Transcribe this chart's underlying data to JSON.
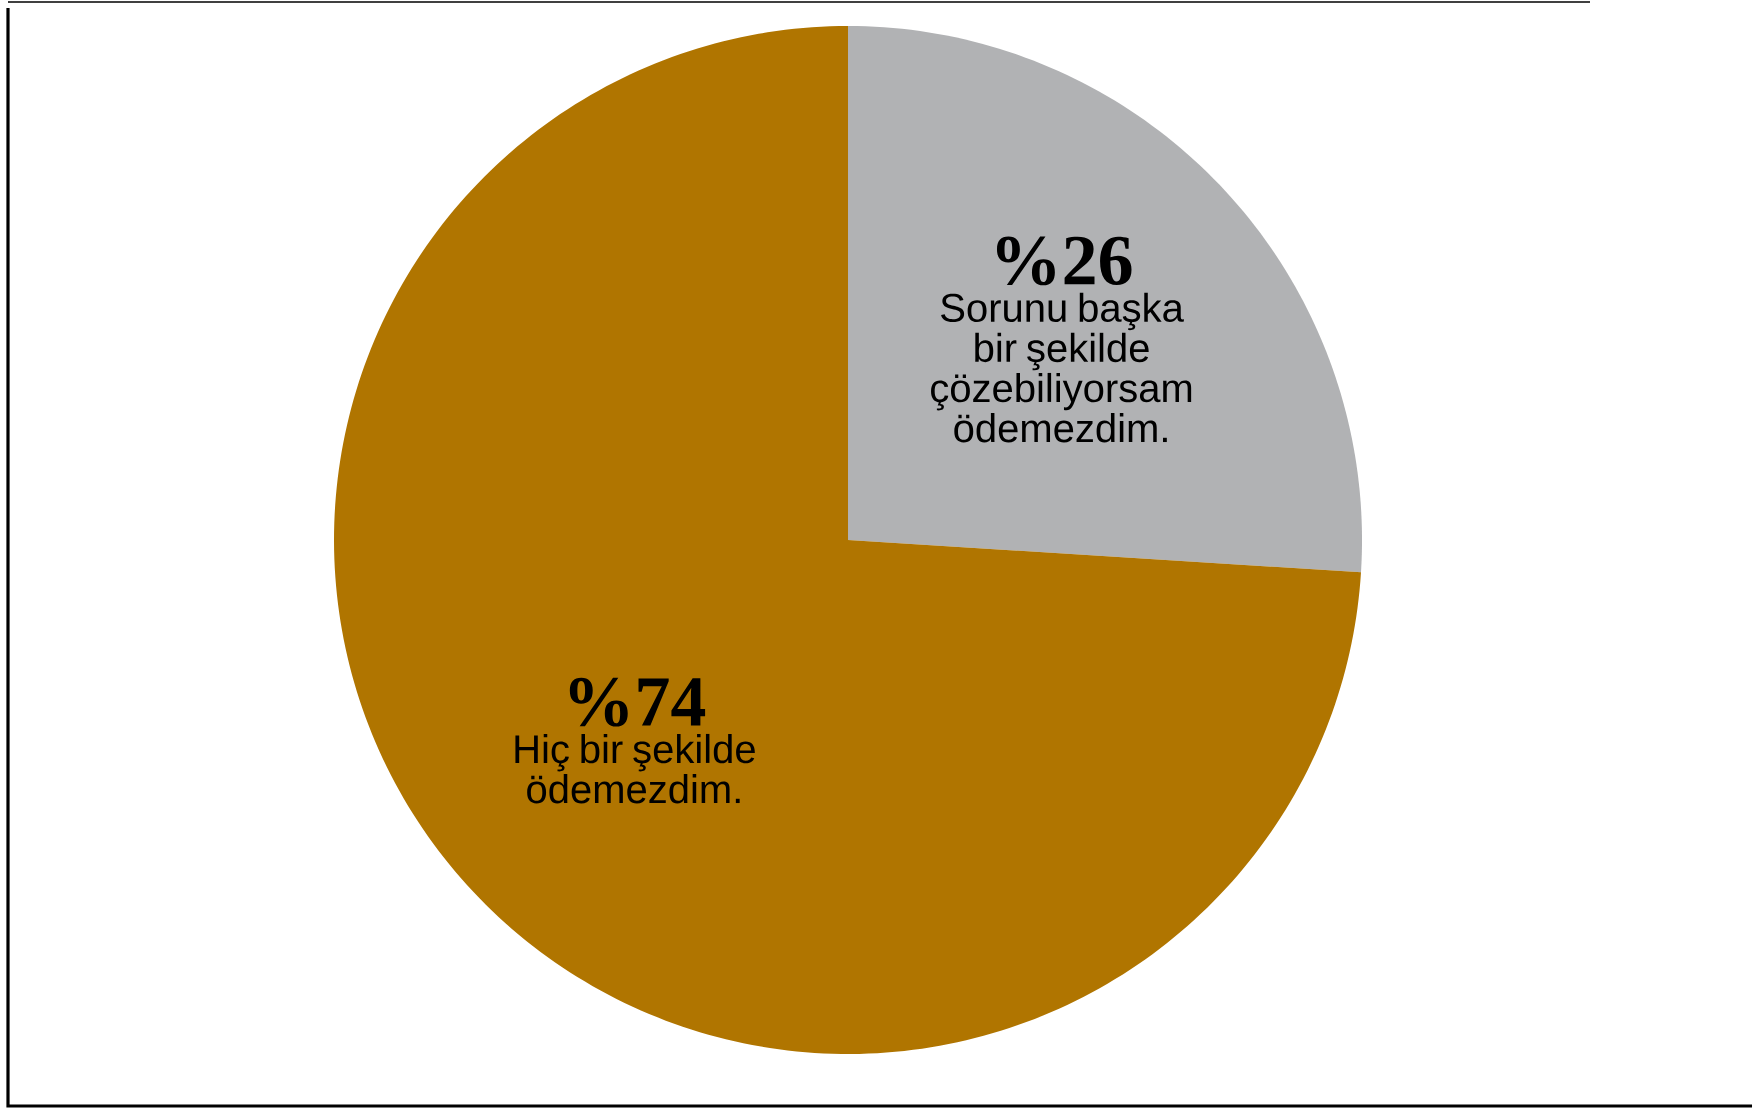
{
  "chart_data": {
    "type": "pie",
    "categories": [
      "Sorunu başka bir şekilde çözebiliyorsam ödemezdim.",
      "Hiç bir şekilde ödemezdim."
    ],
    "values": [
      26,
      74
    ],
    "colors": [
      "#b1b2b4",
      "#b07500"
    ],
    "value_labels": [
      "%26",
      "%74"
    ]
  }
}
